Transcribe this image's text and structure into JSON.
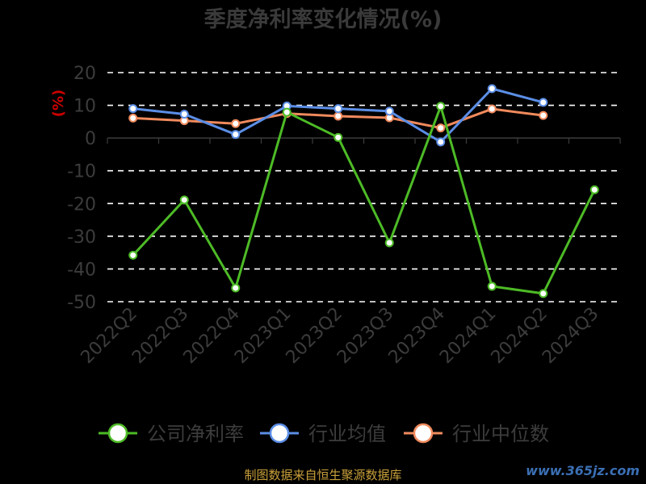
{
  "chart_data": {
    "type": "line",
    "title": "季度净利率变化情况(%)",
    "ylabel": "(%)",
    "categories": [
      "2022Q2",
      "2022Q3",
      "2022Q4",
      "2023Q1",
      "2023Q2",
      "2023Q3",
      "2023Q4",
      "2024Q1",
      "2024Q2",
      "2024Q3"
    ],
    "ylim": [
      -50,
      20
    ],
    "yticks": [
      20,
      10,
      0,
      -10,
      -20,
      -30,
      -40,
      -50
    ],
    "grid": true,
    "legend_position": "bottom",
    "series": [
      {
        "name": "公司净利率",
        "color": "#4dbb26",
        "values": [
          -35.8,
          -18.9,
          -45.8,
          7.9,
          0.2,
          -32,
          9.7,
          -45.3,
          -47.5,
          -15.8
        ]
      },
      {
        "name": "行业均值",
        "color": "#5b8ee6",
        "values": [
          9.0,
          7.3,
          1.1,
          9.8,
          9.0,
          8.2,
          -1.2,
          15.1,
          10.9,
          null
        ]
      },
      {
        "name": "行业中位数",
        "color": "#f08a5d",
        "values": [
          6.1,
          5.3,
          4.4,
          7.5,
          6.7,
          6.2,
          3.1,
          8.9,
          6.9,
          null
        ]
      }
    ]
  },
  "footer": {
    "source": "制图数据来自恒生聚源数据库",
    "watermark": "www.365jz.com"
  }
}
